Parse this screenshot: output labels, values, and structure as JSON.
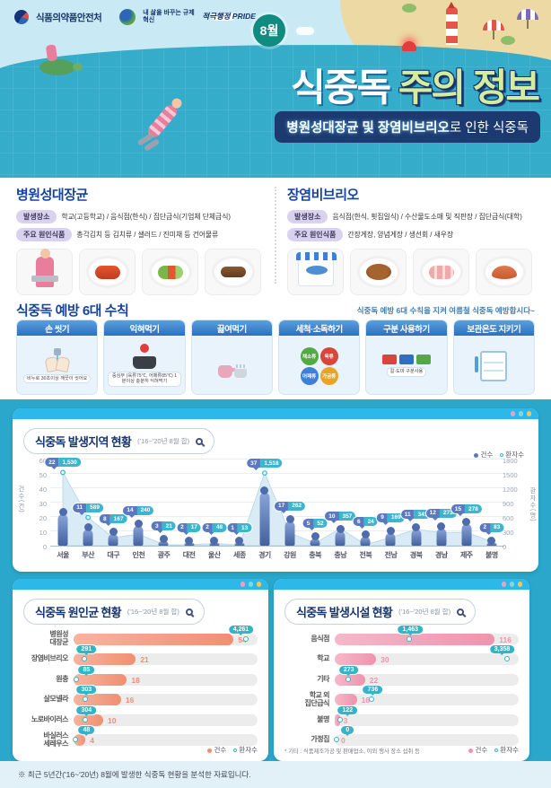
{
  "header": {
    "agency": "식품의약품안전처",
    "badge_innovation": "내 삶을 바꾸는 규제혁신",
    "badge_pride": "적극행정 PRIDE",
    "month": "8월",
    "title_main": "식중독",
    "title_accent": "주의 정보",
    "subtitle_highlight": "병원성대장균 및 장염비브리오",
    "subtitle_rest": "로 인한 식중독"
  },
  "pathogens": [
    {
      "name": "병원성대장균",
      "rows": [
        {
          "tag": "발생장소",
          "text": "학교(고등학교) / 음식점(한식) / 집단급식(기업체 단체급식)"
        },
        {
          "tag": "주요 원인식품",
          "text": "총각김치 등 김치류 / 샐러드 / 진미채 등 건어물류"
        }
      ],
      "images": [
        "school-meal",
        "kimchi",
        "salad",
        "dried"
      ]
    },
    {
      "name": "장염비브리오",
      "rows": [
        {
          "tag": "발생장소",
          "text": "음식점(한식, 횟집일식) / 수산물도소매 및 직판장 / 집단급식(대학)"
        },
        {
          "tag": "주요 원인식품",
          "text": "간장게장, 양념게장 / 생선회 / 새우장"
        }
      ],
      "images": [
        "fish-shop",
        "crab",
        "sashimi",
        "shrimp"
      ]
    }
  ],
  "rules": {
    "title": "식중독 예방 6대 수칙",
    "tagline": "식중독 예방 6대 수칙을 지켜 여름철 식중독 예방합시다~",
    "cards": [
      {
        "label": "손 씻기",
        "icon": "handwash",
        "note": "비누로 30초이상 깨끗이 씻어요"
      },
      {
        "label": "익혀먹기",
        "icon": "cook",
        "note": "중심부 (육류75℃, 어패류85℃) 1분이상 충분히 익혀먹기"
      },
      {
        "label": "끓여먹기",
        "icon": "boil",
        "note": ""
      },
      {
        "label": "세척·소독하기",
        "icon": "sanitize",
        "note": "",
        "tags": [
          "채소류",
          "육류",
          "어패류",
          "가금류"
        ]
      },
      {
        "label": "구분 사용하기",
        "icon": "separate",
        "note": "칼·도마 구분사용"
      },
      {
        "label": "보관온도 지키기",
        "icon": "storage",
        "note": ""
      }
    ]
  },
  "legend": {
    "cases": "건수",
    "patients": "환자수"
  },
  "chart_data": [
    {
      "type": "combo-column-area",
      "title": "식중독 발생지역 현황",
      "subtitle": "('16~'20년 8월 합)",
      "categories": [
        "서울",
        "부산",
        "대구",
        "인천",
        "광주",
        "대전",
        "울산",
        "세종",
        "경기",
        "강원",
        "충북",
        "충남",
        "전북",
        "전남",
        "경북",
        "경남",
        "제주",
        "불명"
      ],
      "series": [
        {
          "name": "건수",
          "type": "column",
          "values": [
            22,
            11,
            8,
            14,
            3,
            2,
            2,
            1,
            37,
            17,
            5,
            10,
            6,
            9,
            11,
            12,
            15,
            2
          ]
        },
        {
          "name": "환자수",
          "type": "area",
          "values": [
            1530,
            589,
            167,
            240,
            21,
            17,
            48,
            13,
            1518,
            262,
            52,
            357,
            24,
            169,
            341,
            273,
            278,
            83
          ]
        }
      ],
      "ylabel_left": "건수(건)",
      "ylim_left": [
        0,
        60
      ],
      "yticks_left": [
        0,
        10,
        20,
        30,
        40,
        50,
        60
      ],
      "ylabel_right": "환자수(명)",
      "ylim_right": [
        0,
        1800
      ],
      "yticks_right": [
        0,
        300,
        600,
        900,
        1200,
        1500,
        1800
      ],
      "legend": [
        "건수",
        "환자수"
      ],
      "legend_position": "top-right",
      "grid": true
    },
    {
      "type": "bar",
      "title": "식중독 원인균 현황",
      "subtitle": "('16~'20년 8월 합)",
      "categories": [
        "병원성\n대장균",
        "장염비브리오",
        "원충",
        "살모넬라",
        "노로바이러스",
        "바실러스\n세레우스"
      ],
      "series": [
        {
          "name": "건수",
          "values": [
            54,
            21,
            18,
            16,
            10,
            4
          ]
        },
        {
          "name": "환자수",
          "values": [
            4261,
            291,
            85,
            303,
            304,
            48
          ]
        }
      ],
      "bar_color": "#f08f72",
      "legend": [
        "건수",
        "환자수"
      ],
      "legend_position": "bottom-right"
    },
    {
      "type": "bar",
      "title": "식중독 발생시설 현황",
      "subtitle": "('16~'20년 8월 합)",
      "categories": [
        "음식점",
        "학교",
        "기타",
        "학교 외\n집단급식",
        "불명",
        "가정집"
      ],
      "series": [
        {
          "name": "건수",
          "values": [
            116,
            30,
            22,
            16,
            3,
            0
          ]
        },
        {
          "name": "환자수",
          "values": [
            1463,
            3358,
            273,
            736,
            122,
            0
          ]
        }
      ],
      "footnote": "* 기타 : 식품제조가공 및 판매업소, 야외 행사 장소 섭취 등",
      "bar_color": "#ef93ad",
      "legend": [
        "건수",
        "환자수"
      ],
      "legend_position": "bottom-right"
    }
  ],
  "footnote": "※ 최근 5년간('16~'20년) 8월에 발생한 식중독 현황을 분석한 자료입니다.",
  "colors": {
    "section_bg": "#2aa7cb",
    "panel_bar": "#2cb9e9",
    "case_blue": "#5b79c0",
    "patient_teal": "#35b4c9",
    "cause_bar": "#f08f72",
    "facility_bar": "#ef93ad",
    "navy": "#17366e",
    "title_green": "#d3ec9e",
    "banner_navy": "#1d3a70"
  }
}
